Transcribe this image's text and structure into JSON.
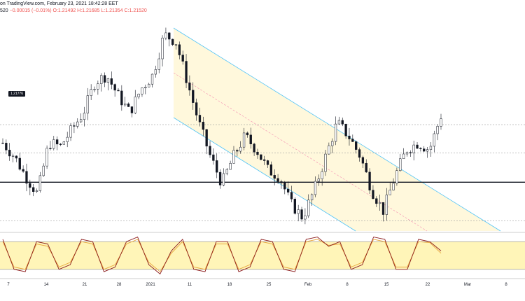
{
  "header": {
    "line1": "on TradingView.com, February 23, 2021 18:42:28 EET",
    "line2_prefix": "520",
    "change": "−0.00015 (−0.01%)",
    "ohlc": "O:1.21492 H:1.21685 L:1.21354 C:1.21520"
  },
  "price_label": "1.21776",
  "colors": {
    "up": "#131722",
    "down": "#131722",
    "channel_line": "#4fc3f7",
    "channel_fill": "#fff8dc",
    "mid_line": "#f48fb1",
    "stoch_k": "#8b1a1a",
    "stoch_d": "#e8a53a",
    "stoch_band": "#fff5b8"
  },
  "x_ticks": [
    "7",
    "14",
    "21",
    "28",
    "2021",
    "11",
    "18",
    "25",
    "Feb",
    "8",
    "15",
    "22",
    "Mar",
    "8"
  ],
  "chart_data": {
    "type": "candlestick",
    "symbol_close": 1.2152,
    "horizontal_levels": [
      1.2177,
      1.2135,
      1.2092,
      1.2035
    ],
    "price_path": [
      1.215,
      1.213,
      1.21,
      1.2075,
      1.215,
      1.2145,
      1.217,
      1.2195,
      1.224,
      1.225,
      1.222,
      1.2195,
      1.223,
      1.225,
      1.231,
      1.23,
      1.224,
      1.218,
      1.213,
      1.209,
      1.213,
      1.216,
      1.214,
      1.211,
      1.21,
      1.206,
      1.204,
      1.208,
      1.213,
      1.218,
      1.216,
      1.213,
      1.208,
      1.205,
      1.21,
      1.214,
      1.215,
      1.214,
      1.219
    ],
    "stochastic": {
      "k": [
        85,
        20,
        15,
        80,
        75,
        20,
        30,
        85,
        80,
        15,
        25,
        80,
        90,
        30,
        10,
        60,
        85,
        20,
        15,
        80,
        80,
        15,
        25,
        85,
        80,
        20,
        15,
        85,
        90,
        70,
        80,
        20,
        30,
        90,
        85,
        20,
        20,
        85,
        80,
        60
      ],
      "d": [
        80,
        25,
        20,
        75,
        70,
        25,
        35,
        80,
        75,
        20,
        30,
        75,
        85,
        35,
        15,
        55,
        80,
        25,
        20,
        75,
        75,
        20,
        30,
        80,
        75,
        25,
        20,
        80,
        85,
        72,
        75,
        25,
        35,
        85,
        80,
        25,
        25,
        80,
        78,
        55
      ],
      "bands": [
        80,
        20
      ]
    }
  }
}
